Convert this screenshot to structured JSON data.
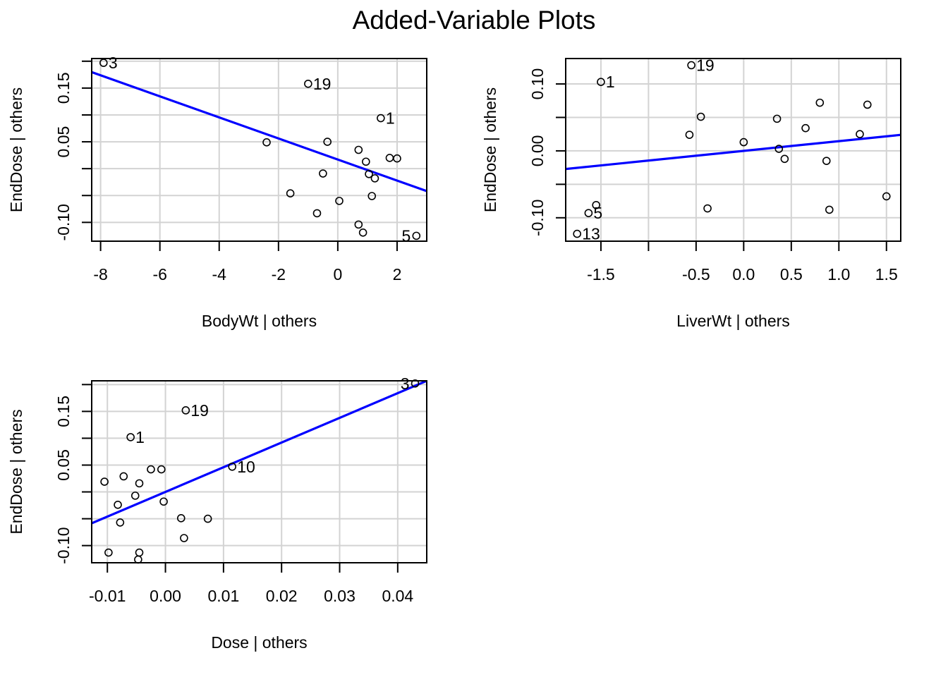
{
  "title": "Added-Variable Plots",
  "colors": {
    "regression_line": "#0000ff",
    "grid": "#d3d3d3",
    "points": "#000000"
  },
  "chart_data": [
    {
      "type": "scatter",
      "xlabel": "BodyWt | others",
      "ylabel": "EndDose  | others",
      "xlim": [
        -8.3,
        3.0
      ],
      "ylim": [
        -0.135,
        0.205
      ],
      "xticks": [
        -8,
        -6,
        -4,
        -2,
        0,
        2
      ],
      "yticks": [
        -0.1,
        -0.05,
        0,
        0.05,
        0.1,
        0.15,
        0.2
      ],
      "ytick_labels": [
        "-0.10",
        "",
        "",
        "0.05",
        "",
        "0.15",
        ""
      ],
      "grid": true,
      "fit_line": {
        "slope": -0.0196,
        "intercept": 0.017
      },
      "points": [
        {
          "x": -7.9,
          "y": 0.197,
          "label": "3"
        },
        {
          "x": -1.0,
          "y": 0.158,
          "label": "19"
        },
        {
          "x": 1.45,
          "y": 0.094,
          "label": "1"
        },
        {
          "x": -2.4,
          "y": 0.049,
          "label": ""
        },
        {
          "x": -0.35,
          "y": 0.05,
          "label": ""
        },
        {
          "x": 0.7,
          "y": 0.035,
          "label": ""
        },
        {
          "x": 1.75,
          "y": 0.02,
          "label": ""
        },
        {
          "x": 2.0,
          "y": 0.019,
          "label": ""
        },
        {
          "x": 0.95,
          "y": 0.013,
          "label": ""
        },
        {
          "x": -0.5,
          "y": -0.009,
          "label": ""
        },
        {
          "x": 1.05,
          "y": -0.01,
          "label": ""
        },
        {
          "x": 1.25,
          "y": -0.018,
          "label": ""
        },
        {
          "x": -1.6,
          "y": -0.046,
          "label": ""
        },
        {
          "x": 1.15,
          "y": -0.051,
          "label": ""
        },
        {
          "x": 0.05,
          "y": -0.06,
          "label": ""
        },
        {
          "x": -0.7,
          "y": -0.083,
          "label": ""
        },
        {
          "x": 0.7,
          "y": -0.104,
          "label": ""
        },
        {
          "x": 0.85,
          "y": -0.119,
          "label": ""
        },
        {
          "x": 2.65,
          "y": -0.125,
          "label": "5"
        }
      ]
    },
    {
      "type": "scatter",
      "xlabel": "LiverWt | others",
      "ylabel": "EndDose  | others",
      "xlim": [
        -1.87,
        1.65
      ],
      "ylim": [
        -0.135,
        0.138
      ],
      "xticks": [
        -1.5,
        -1.0,
        -0.5,
        0.0,
        0.5,
        1.0,
        1.5
      ],
      "xtick_labels": [
        "-1.5",
        "",
        "-0.5",
        "0.0",
        "0.5",
        "1.0",
        "1.5"
      ],
      "yticks": [
        -0.1,
        -0.05,
        0,
        0.05,
        0.1
      ],
      "ytick_labels": [
        "-0.10",
        "",
        "0.00",
        "",
        "0.10"
      ],
      "grid": true,
      "fit_line": {
        "slope": 0.0145,
        "intercept": 0.0
      },
      "points": [
        {
          "x": -0.55,
          "y": 0.128,
          "label": "19"
        },
        {
          "x": -1.5,
          "y": 0.103,
          "label": "1"
        },
        {
          "x": 0.8,
          "y": 0.072,
          "label": ""
        },
        {
          "x": 1.3,
          "y": 0.069,
          "label": ""
        },
        {
          "x": -0.45,
          "y": 0.051,
          "label": ""
        },
        {
          "x": 0.35,
          "y": 0.048,
          "label": ""
        },
        {
          "x": 0.65,
          "y": 0.034,
          "label": ""
        },
        {
          "x": -0.57,
          "y": 0.024,
          "label": ""
        },
        {
          "x": 1.22,
          "y": 0.025,
          "label": ""
        },
        {
          "x": 0.0,
          "y": 0.013,
          "label": ""
        },
        {
          "x": 0.37,
          "y": 0.003,
          "label": ""
        },
        {
          "x": 0.43,
          "y": -0.012,
          "label": ""
        },
        {
          "x": 0.87,
          "y": -0.015,
          "label": ""
        },
        {
          "x": 1.5,
          "y": -0.068,
          "label": ""
        },
        {
          "x": -1.55,
          "y": -0.081,
          "label": ""
        },
        {
          "x": -0.38,
          "y": -0.086,
          "label": ""
        },
        {
          "x": 0.9,
          "y": -0.088,
          "label": ""
        },
        {
          "x": -1.63,
          "y": -0.093,
          "label": "5"
        },
        {
          "x": -1.75,
          "y": -0.124,
          "label": "13"
        }
      ]
    },
    {
      "type": "scatter",
      "xlabel": "Dose | others",
      "ylabel": "EndDose  | others",
      "xlim": [
        -0.0127,
        0.045
      ],
      "ylim": [
        -0.132,
        0.207
      ],
      "xticks": [
        -0.01,
        0.0,
        0.01,
        0.02,
        0.03,
        0.04
      ],
      "xtick_labels": [
        "-0.01",
        "0.00",
        "0.01",
        "0.02",
        "0.03",
        "0.04"
      ],
      "yticks": [
        -0.1,
        -0.05,
        0,
        0.05,
        0.1,
        0.15,
        0.2
      ],
      "ytick_labels": [
        "-0.10",
        "",
        "",
        "0.05",
        "",
        "0.15",
        ""
      ],
      "grid": true,
      "fit_line": {
        "slope": 4.6,
        "intercept": 0.0
      },
      "points": [
        {
          "x": 0.043,
          "y": 0.202,
          "label": "3"
        },
        {
          "x": 0.0035,
          "y": 0.152,
          "label": "19"
        },
        {
          "x": -0.006,
          "y": 0.102,
          "label": "1"
        },
        {
          "x": 0.0115,
          "y": 0.047,
          "label": "10"
        },
        {
          "x": -0.0025,
          "y": 0.042,
          "label": ""
        },
        {
          "x": -0.0007,
          "y": 0.042,
          "label": ""
        },
        {
          "x": -0.0072,
          "y": 0.029,
          "label": ""
        },
        {
          "x": -0.0105,
          "y": 0.019,
          "label": ""
        },
        {
          "x": -0.0045,
          "y": 0.016,
          "label": ""
        },
        {
          "x": -0.0052,
          "y": -0.007,
          "label": ""
        },
        {
          "x": -0.0003,
          "y": -0.018,
          "label": ""
        },
        {
          "x": -0.0082,
          "y": -0.024,
          "label": ""
        },
        {
          "x": 0.0027,
          "y": -0.049,
          "label": ""
        },
        {
          "x": 0.0073,
          "y": -0.05,
          "label": ""
        },
        {
          "x": -0.0078,
          "y": -0.057,
          "label": ""
        },
        {
          "x": 0.0032,
          "y": -0.086,
          "label": ""
        },
        {
          "x": -0.0098,
          "y": -0.113,
          "label": ""
        },
        {
          "x": -0.0045,
          "y": -0.113,
          "label": ""
        },
        {
          "x": -0.0047,
          "y": -0.126,
          "label": ""
        }
      ]
    }
  ]
}
